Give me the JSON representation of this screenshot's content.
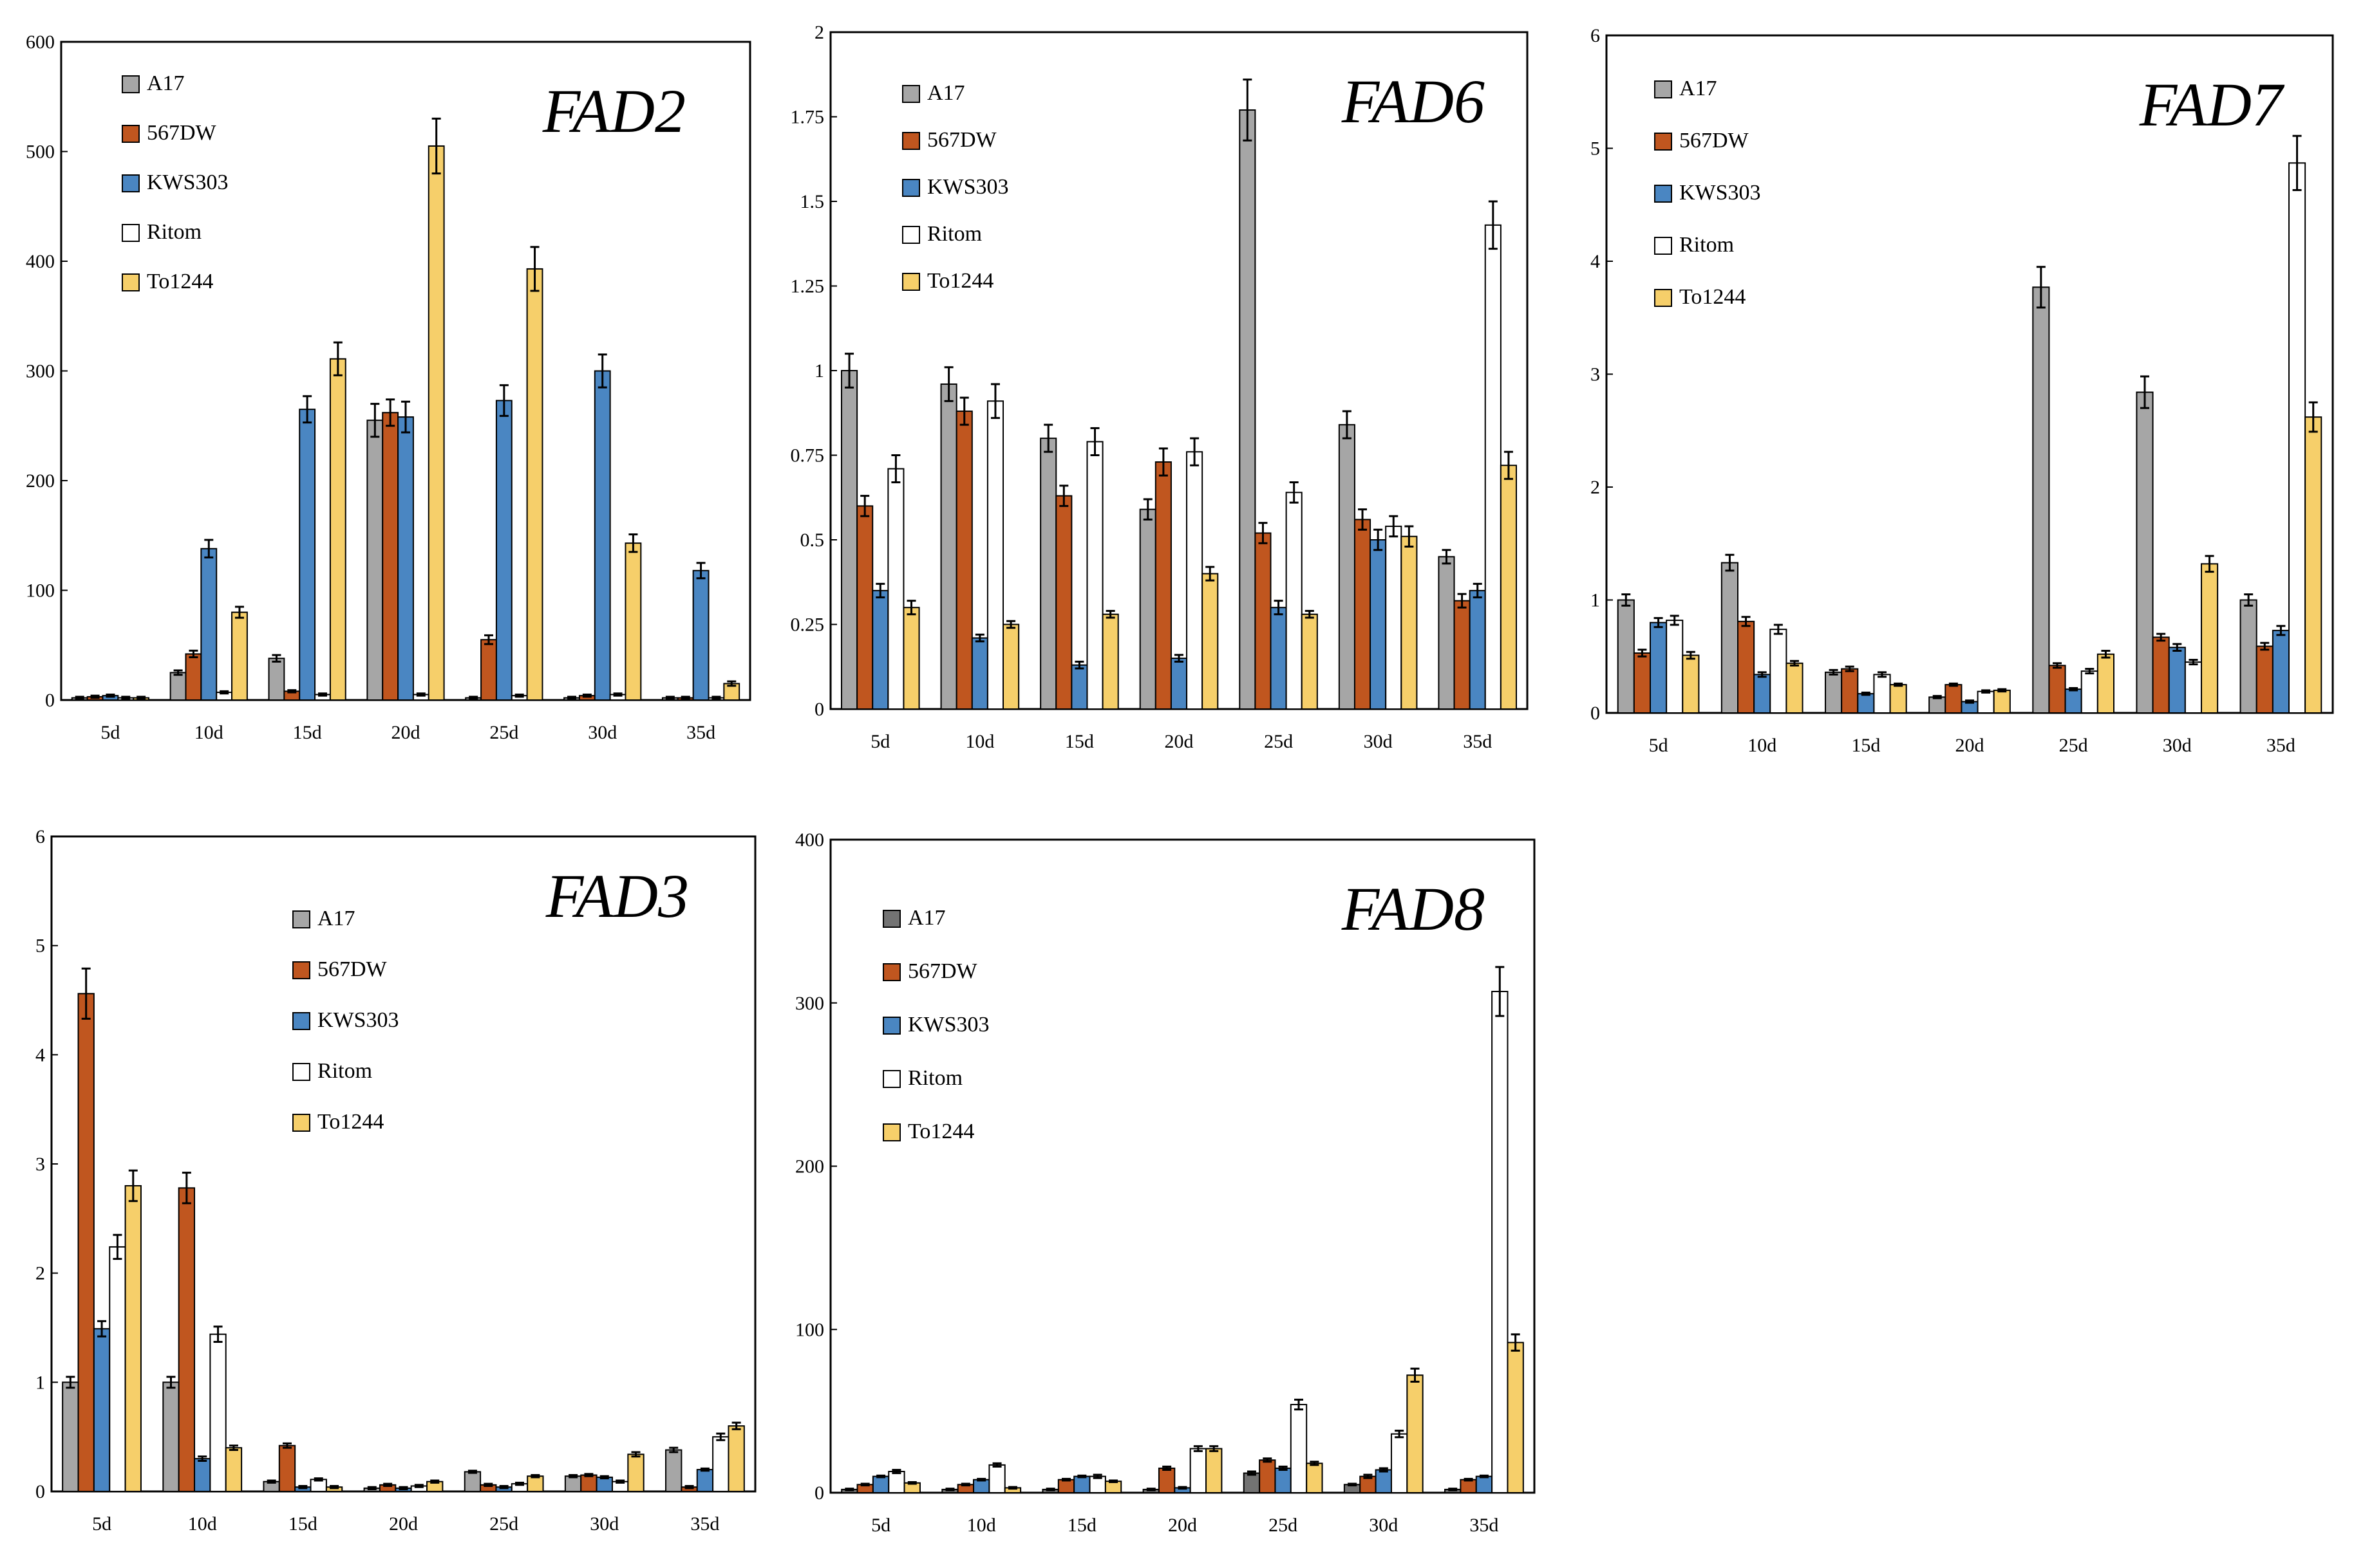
{
  "figure": {
    "colors": {
      "A17": "#a6a6a6",
      "A17_dark": "#737373",
      "567DW": "#c0561f",
      "KWS303": "#4a86c2",
      "Ritom": "#ffffff",
      "To1244": "#f6cf6a",
      "frame": "#000000",
      "bar_stroke": "#000000"
    }
  },
  "chart_data": [
    {
      "type": "bar",
      "title": "FAD2",
      "xlabel": "",
      "ylabel": "",
      "ylim": [
        0,
        600
      ],
      "yticks": [
        0,
        100,
        200,
        300,
        400,
        500,
        600
      ],
      "ytick_labels": [
        "0",
        "100",
        "200",
        "300",
        "400",
        "500",
        "600"
      ],
      "grid": false,
      "legend_position": "top-left",
      "categories": [
        "5d",
        "10d",
        "15d",
        "20d",
        "25d",
        "30d",
        "35d"
      ],
      "series": [
        {
          "name": "A17",
          "color_key": "A17",
          "values": [
            2,
            25,
            38,
            255,
            2,
            2,
            2
          ],
          "errors": [
            1,
            2,
            3,
            15,
            1,
            1,
            1
          ]
        },
        {
          "name": "567DW",
          "color_key": "567DW",
          "values": [
            3,
            42,
            8,
            262,
            55,
            4,
            2
          ],
          "errors": [
            1,
            3,
            1,
            12,
            4,
            1,
            1
          ]
        },
        {
          "name": "KWS303",
          "color_key": "KWS303",
          "values": [
            4,
            138,
            265,
            258,
            273,
            300,
            118
          ],
          "errors": [
            1,
            8,
            12,
            14,
            14,
            15,
            7
          ]
        },
        {
          "name": "Ritom",
          "color_key": "Ritom",
          "values": [
            2,
            7,
            5,
            5,
            4,
            5,
            2
          ],
          "errors": [
            1,
            1,
            1,
            1,
            1,
            1,
            1
          ]
        },
        {
          "name": "To1244",
          "color_key": "To1244",
          "values": [
            2,
            80,
            311,
            505,
            393,
            143,
            15
          ],
          "errors": [
            1,
            5,
            15,
            25,
            20,
            8,
            2
          ]
        }
      ]
    },
    {
      "type": "bar",
      "title": "FAD6",
      "xlabel": "",
      "ylabel": "",
      "ylim": [
        0,
        2
      ],
      "yticks": [
        0,
        0.25,
        0.5,
        0.75,
        1,
        1.25,
        1.5,
        1.75,
        2
      ],
      "ytick_labels": [
        "0",
        "0.25",
        "0.5",
        "0.75",
        "1",
        "1.25",
        "1.5",
        "1.75",
        "2"
      ],
      "grid": false,
      "legend_position": "top-left",
      "categories": [
        "5d",
        "10d",
        "15d",
        "20d",
        "25d",
        "30d",
        "35d"
      ],
      "series": [
        {
          "name": "A17",
          "color_key": "A17",
          "values": [
            1.0,
            0.96,
            0.8,
            0.59,
            1.77,
            0.84,
            0.45
          ],
          "errors": [
            0.05,
            0.05,
            0.04,
            0.03,
            0.09,
            0.04,
            0.02
          ]
        },
        {
          "name": "567DW",
          "color_key": "567DW",
          "values": [
            0.6,
            0.88,
            0.63,
            0.73,
            0.52,
            0.56,
            0.32
          ],
          "errors": [
            0.03,
            0.04,
            0.03,
            0.04,
            0.03,
            0.03,
            0.02
          ]
        },
        {
          "name": "KWS303",
          "color_key": "KWS303",
          "values": [
            0.35,
            0.21,
            0.13,
            0.15,
            0.3,
            0.5,
            0.35
          ],
          "errors": [
            0.02,
            0.01,
            0.01,
            0.01,
            0.02,
            0.03,
            0.02
          ]
        },
        {
          "name": "Ritom",
          "color_key": "Ritom",
          "values": [
            0.71,
            0.91,
            0.79,
            0.76,
            0.64,
            0.54,
            1.43
          ],
          "errors": [
            0.04,
            0.05,
            0.04,
            0.04,
            0.03,
            0.03,
            0.07
          ]
        },
        {
          "name": "To1244",
          "color_key": "To1244",
          "values": [
            0.3,
            0.25,
            0.28,
            0.4,
            0.28,
            0.51,
            0.72
          ],
          "errors": [
            0.02,
            0.01,
            0.01,
            0.02,
            0.01,
            0.03,
            0.04
          ]
        }
      ]
    },
    {
      "type": "bar",
      "title": "FAD7",
      "xlabel": "",
      "ylabel": "",
      "ylim": [
        0,
        6
      ],
      "yticks": [
        0,
        1,
        2,
        3,
        4,
        5,
        6
      ],
      "ytick_labels": [
        "0",
        "1",
        "2",
        "3",
        "4",
        "5",
        "6"
      ],
      "grid": false,
      "legend_position": "top-left",
      "categories": [
        "5d",
        "10d",
        "15d",
        "20d",
        "25d",
        "30d",
        "35d"
      ],
      "series": [
        {
          "name": "A17",
          "color_key": "A17",
          "values": [
            1.0,
            1.33,
            0.36,
            0.14,
            3.77,
            2.84,
            1.0
          ],
          "errors": [
            0.05,
            0.07,
            0.02,
            0.01,
            0.18,
            0.14,
            0.05
          ]
        },
        {
          "name": "567DW",
          "color_key": "567DW",
          "values": [
            0.53,
            0.81,
            0.39,
            0.25,
            0.42,
            0.67,
            0.59
          ],
          "errors": [
            0.03,
            0.04,
            0.02,
            0.01,
            0.02,
            0.03,
            0.03
          ]
        },
        {
          "name": "KWS303",
          "color_key": "KWS303",
          "values": [
            0.8,
            0.34,
            0.17,
            0.1,
            0.21,
            0.58,
            0.73
          ],
          "errors": [
            0.04,
            0.02,
            0.01,
            0.01,
            0.01,
            0.03,
            0.04
          ]
        },
        {
          "name": "Ritom",
          "color_key": "Ritom",
          "values": [
            0.82,
            0.74,
            0.34,
            0.19,
            0.37,
            0.45,
            4.87
          ],
          "errors": [
            0.04,
            0.04,
            0.02,
            0.01,
            0.02,
            0.02,
            0.24
          ]
        },
        {
          "name": "To1244",
          "color_key": "To1244",
          "values": [
            0.51,
            0.44,
            0.25,
            0.2,
            0.52,
            1.32,
            2.62
          ],
          "errors": [
            0.03,
            0.02,
            0.01,
            0.01,
            0.03,
            0.07,
            0.13
          ]
        }
      ]
    },
    {
      "type": "bar",
      "title": "FAD3",
      "xlabel": "",
      "ylabel": "",
      "ylim": [
        0,
        6
      ],
      "yticks": [
        0,
        1,
        2,
        3,
        4,
        5,
        6
      ],
      "ytick_labels": [
        "0",
        "1",
        "2",
        "3",
        "4",
        "5",
        "6"
      ],
      "grid": false,
      "legend_position": "top-center",
      "categories": [
        "5d",
        "10d",
        "15d",
        "20d",
        "25d",
        "30d",
        "35d"
      ],
      "series": [
        {
          "name": "A17",
          "color_key": "A17",
          "values": [
            1.0,
            1.0,
            0.09,
            0.03,
            0.18,
            0.14,
            0.38
          ],
          "errors": [
            0.05,
            0.05,
            0.01,
            0.01,
            0.01,
            0.01,
            0.02
          ]
        },
        {
          "name": "567DW",
          "color_key": "567DW",
          "values": [
            4.56,
            2.78,
            0.42,
            0.06,
            0.06,
            0.15,
            0.04
          ],
          "errors": [
            0.23,
            0.14,
            0.02,
            0.01,
            0.01,
            0.01,
            0.01
          ]
        },
        {
          "name": "KWS303",
          "color_key": "KWS303",
          "values": [
            1.49,
            0.3,
            0.04,
            0.03,
            0.04,
            0.13,
            0.2
          ],
          "errors": [
            0.07,
            0.02,
            0.01,
            0.01,
            0.01,
            0.01,
            0.01
          ]
        },
        {
          "name": "Ritom",
          "color_key": "Ritom",
          "values": [
            2.24,
            1.44,
            0.11,
            0.05,
            0.07,
            0.09,
            0.5
          ],
          "errors": [
            0.11,
            0.07,
            0.01,
            0.01,
            0.01,
            0.01,
            0.03
          ]
        },
        {
          "name": "To1244",
          "color_key": "To1244",
          "values": [
            2.8,
            0.4,
            0.04,
            0.09,
            0.14,
            0.34,
            0.6
          ],
          "errors": [
            0.14,
            0.02,
            0.01,
            0.01,
            0.01,
            0.02,
            0.03
          ]
        }
      ]
    },
    {
      "type": "bar",
      "title": "FAD8",
      "xlabel": "",
      "ylabel": "",
      "ylim": [
        0,
        400
      ],
      "yticks": [
        0,
        100,
        200,
        300,
        400
      ],
      "ytick_labels": [
        "0",
        "100",
        "200",
        "300",
        "400"
      ],
      "grid": false,
      "legend_position": "top-left",
      "categories": [
        "5d",
        "10d",
        "15d",
        "20d",
        "25d",
        "30d",
        "35d"
      ],
      "series": [
        {
          "name": "A17",
          "color_key": "A17_dark",
          "values": [
            2,
            2,
            2,
            2,
            12,
            5,
            2
          ],
          "errors": [
            0.5,
            0.5,
            0.5,
            0.5,
            1,
            0.5,
            0.5
          ]
        },
        {
          "name": "567DW",
          "color_key": "567DW",
          "values": [
            5,
            5,
            8,
            15,
            20,
            10,
            8
          ],
          "errors": [
            0.5,
            0.5,
            0.5,
            1,
            1,
            1,
            0.5
          ]
        },
        {
          "name": "KWS303",
          "color_key": "KWS303",
          "values": [
            10,
            8,
            10,
            3,
            15,
            14,
            10
          ],
          "errors": [
            0.5,
            0.5,
            0.5,
            0.5,
            1,
            1,
            0.5
          ]
        },
        {
          "name": "Ritom",
          "color_key": "Ritom",
          "values": [
            13,
            17,
            10,
            27,
            54,
            36,
            307
          ],
          "errors": [
            1,
            1,
            1,
            1.5,
            3,
            2,
            15
          ]
        },
        {
          "name": "To1244",
          "color_key": "To1244",
          "values": [
            6,
            3,
            7,
            27,
            18,
            72,
            92
          ],
          "errors": [
            0.5,
            0.5,
            0.5,
            1.5,
            1,
            4,
            5
          ]
        }
      ]
    }
  ]
}
